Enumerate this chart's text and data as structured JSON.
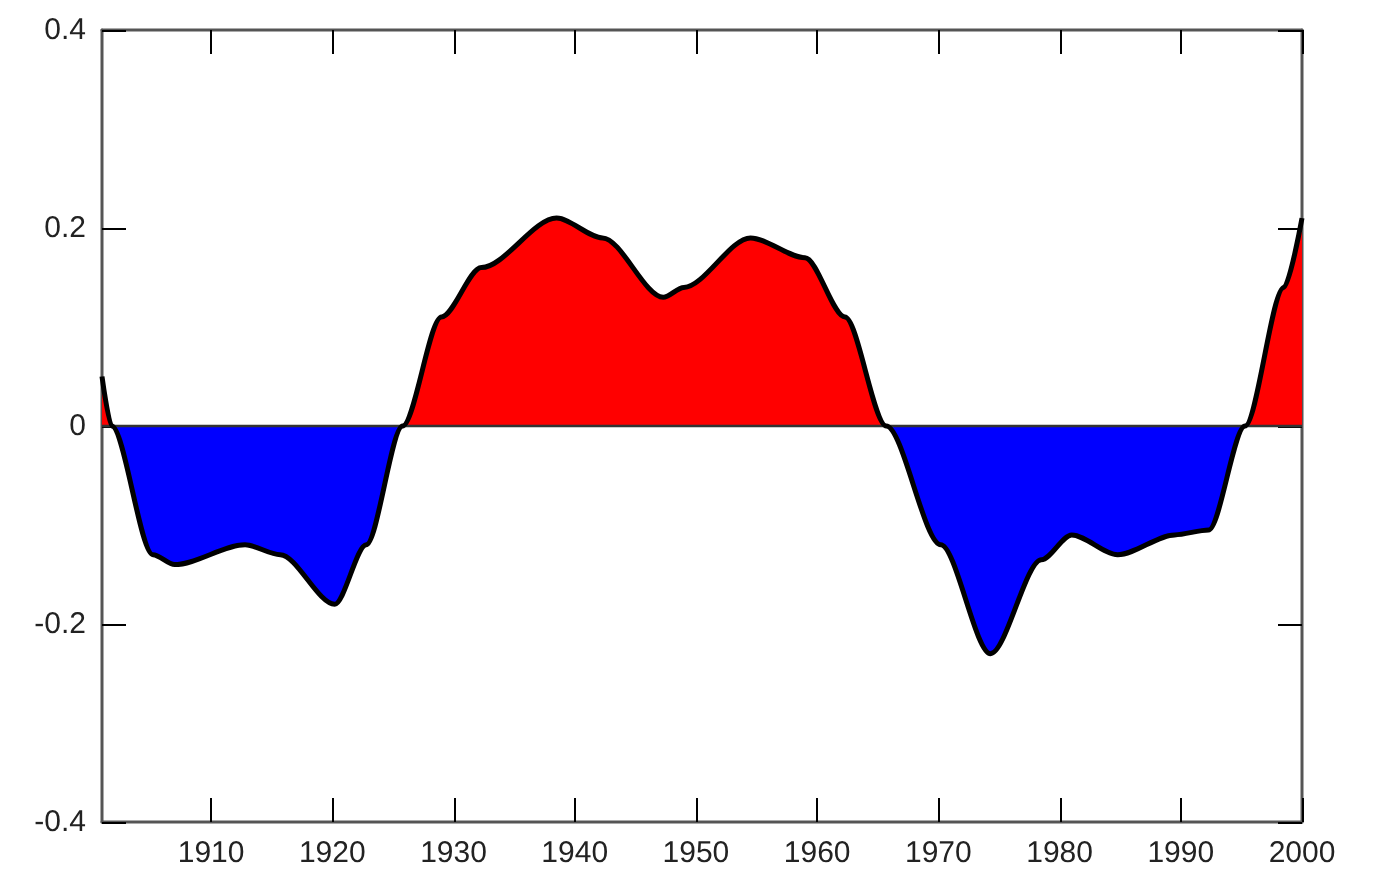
{
  "chart_data": {
    "type": "area",
    "colors": [
      "#ff0000",
      "#0000ff"
    ],
    "x": [
      1901,
      1901.8,
      1905.2,
      1907,
      1912.8,
      1915.7,
      1920.2,
      1922.8,
      1925.8,
      1929,
      1932.3,
      1938.5,
      1942.3,
      1947.3,
      1949,
      1954.5,
      1959,
      1962.3,
      1965.7,
      1970.2,
      1974.3,
      1978.5,
      1981,
      1984.8,
      1989.5,
      1992.3,
      1995.3,
      1998.5,
      2000
    ],
    "series": [
      {
        "color": "#000000",
        "values": [
          0.05,
          0,
          -0.13,
          -0.14,
          -0.12,
          -0.13,
          -0.18,
          -0.12,
          0,
          0.11,
          0.16,
          0.21,
          0.19,
          0.13,
          0.14,
          0.19,
          0.17,
          0.11,
          0,
          -0.12,
          -0.23,
          -0.135,
          -0.11,
          -0.13,
          -0.11,
          -0.105,
          0,
          0.14,
          0.21
        ]
      }
    ],
    "xlim": [
      1901,
      2000
    ],
    "xticks": [
      1910,
      1920,
      1930,
      1940,
      1950,
      1960,
      1970,
      1980,
      1990,
      2000
    ],
    "ylim": [
      -0.4,
      0.4
    ],
    "yticks": [
      -0.4,
      -0.2,
      0,
      0.2,
      0.4
    ],
    "ref_lines": [
      {
        "axis": "y",
        "value": 0,
        "color": "#333333"
      }
    ]
  }
}
